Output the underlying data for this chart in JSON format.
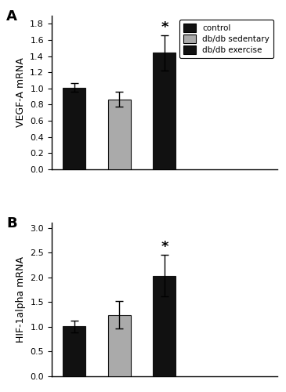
{
  "panel_A": {
    "label": "A",
    "values": [
      1.01,
      0.865,
      1.44
    ],
    "errors": [
      0.055,
      0.09,
      0.22
    ],
    "colors": [
      "#111111",
      "#aaaaaa",
      "#111111"
    ],
    "ylabel": "VEGF-A mRNA",
    "ylim": [
      0.0,
      1.9
    ],
    "yticks": [
      0.0,
      0.2,
      0.4,
      0.6,
      0.8,
      1.0,
      1.2,
      1.4,
      1.6,
      1.8
    ],
    "sig_bar": 2,
    "star_y": 1.67
  },
  "panel_B": {
    "label": "B",
    "values": [
      1.01,
      1.24,
      2.03
    ],
    "errors": [
      0.12,
      0.28,
      0.42
    ],
    "colors": [
      "#111111",
      "#aaaaaa",
      "#111111"
    ],
    "ylabel": "HIF-1alpha mRNA",
    "ylim": [
      0.0,
      3.1
    ],
    "yticks": [
      0.0,
      0.5,
      1.0,
      1.5,
      2.0,
      2.5,
      3.0
    ],
    "sig_bar": 2,
    "star_y": 2.47
  },
  "legend_labels": [
    "control",
    "db/db sedentary",
    "db/db exercise"
  ],
  "legend_colors": [
    "#111111",
    "#aaaaaa",
    "#111111"
  ],
  "bar_width": 0.5,
  "x_positions": [
    0,
    1,
    2
  ],
  "xlim": [
    -0.5,
    4.5
  ],
  "background_color": "#ffffff",
  "edge_color": "#111111"
}
